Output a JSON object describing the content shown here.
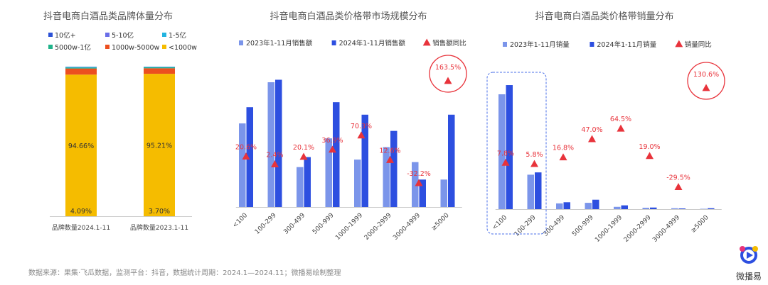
{
  "chart_data": [
    {
      "type": "bar",
      "title": "抖音电商白酒品类品牌体量分布",
      "categories": [
        "品牌数量2024.1-11",
        "品牌数量2023.1-11"
      ],
      "series": [
        {
          "name": "<1000w",
          "values": [
            94.66,
            95.21
          ],
          "color": "#f5bc00"
        },
        {
          "name": "1000w-5000w",
          "values": [
            4.09,
            3.7
          ],
          "color": "#ec4f1f"
        },
        {
          "name": "5000w-1亿",
          "values": [
            0.6,
            0.6
          ],
          "color": "#20b38a"
        },
        {
          "name": "1-5亿",
          "values": [
            0.4,
            0.3
          ],
          "color": "#22b4e0"
        },
        {
          "name": "5-10亿",
          "values": [
            0.15,
            0.1
          ],
          "color": "#6a6ee8"
        },
        {
          "name": "10亿+",
          "values": [
            0.1,
            0.09
          ],
          "color": "#2c52d6"
        }
      ],
      "value_labels": [
        [
          "94.66%",
          "4.09%"
        ],
        [
          "95.21%",
          "3.70%"
        ]
      ],
      "legend_order": [
        "10亿+",
        "5-10亿",
        "1-5亿",
        "5000w-1亿",
        "1000w-5000w",
        "<1000w"
      ],
      "ylim": [
        0,
        100
      ]
    },
    {
      "type": "bar",
      "title": "抖音电商白酒品类价格带市场规模分布",
      "categories": [
        "<100",
        "100-299",
        "300-499",
        "500-999",
        "1000-1999",
        "2000-2999",
        "3000-4999",
        "≥5000"
      ],
      "series": [
        {
          "name": "2023年1-11月销售额",
          "values": [
            67,
            100,
            32,
            55,
            38,
            48,
            36,
            22
          ],
          "color": "#7b95ea"
        },
        {
          "name": "2024年1-11月销售额",
          "values": [
            80,
            102,
            40,
            84,
            74,
            61,
            22,
            74
          ],
          "color": "#2d4fe0"
        }
      ],
      "yoy": {
        "name": "销售额同比",
        "labels": [
          "20.6%",
          "2.4%",
          "20.1%",
          "36.9%",
          "70.3%",
          "12.6%",
          "-32.2%",
          "163.5%"
        ],
        "values": [
          20.6,
          2.4,
          20.1,
          36.9,
          70.3,
          12.6,
          -32.2,
          163.5
        ],
        "color": "#e8333b"
      },
      "highlight": "≥5000"
    },
    {
      "type": "bar",
      "title": "抖音电商白酒品类价格带销量分布",
      "categories": [
        "<100",
        "100-299",
        "300-499",
        "500-999",
        "1000-1999",
        "2000-2999",
        "3000-4999",
        "≥5000"
      ],
      "series": [
        {
          "name": "2023年1-11月销量",
          "values": [
            100,
            30,
            5,
            5.5,
            2,
            1.2,
            0.8,
            0.3
          ],
          "color": "#7b95ea"
        },
        {
          "name": "2024年1-11月销量",
          "values": [
            108,
            32,
            6,
            8.2,
            3.3,
            1.4,
            0.6,
            0.8
          ],
          "color": "#2d4fe0"
        }
      ],
      "yoy": {
        "name": "销量同比",
        "labels": [
          "7.8%",
          "5.8%",
          "16.8%",
          "47.0%",
          "64.5%",
          "19.0%",
          "-29.5%",
          "130.6%"
        ],
        "values": [
          7.8,
          5.8,
          16.8,
          47.0,
          64.5,
          19.0,
          -29.5,
          130.6
        ],
        "color": "#e8333b"
      },
      "highlight": "≥5000",
      "emphasized_categories": [
        "<100",
        "100-299"
      ]
    }
  ],
  "source": "数据来源：果集·飞瓜数据，监测平台：抖音，数据统计周期：2024.1—2024.11；微播易绘制整理",
  "brand": {
    "name": "微播易",
    "icon": "play-logo-icon"
  }
}
